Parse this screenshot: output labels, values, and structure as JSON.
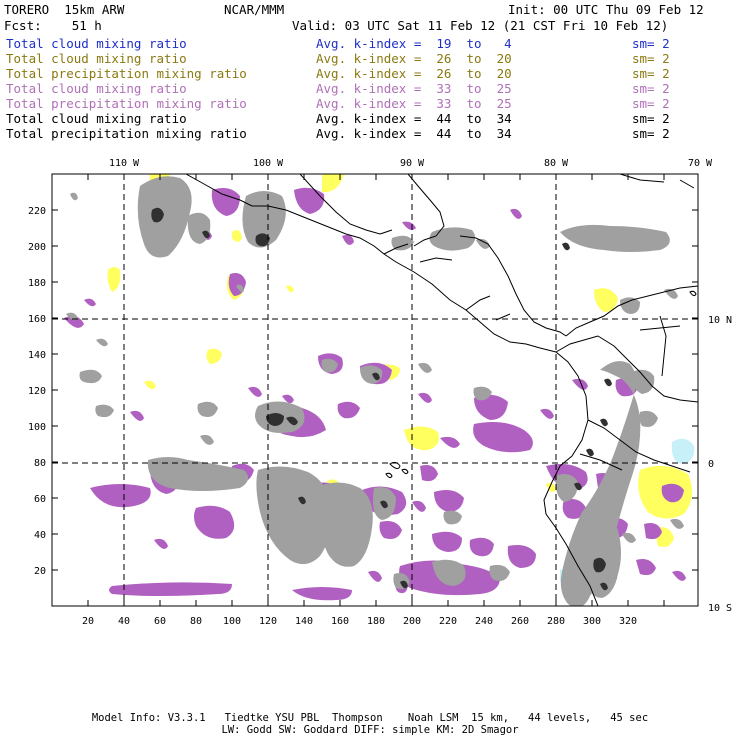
{
  "header": {
    "model": "TORERO  15km ARW",
    "org": "NCAR/MMM",
    "init": "Init: 00 UTC Thu 09 Feb 12",
    "fcst": "Fcst:    51 h",
    "valid": "Valid: 03 UTC Sat 11 Feb 12 (21 CST Fri 10 Feb 12)"
  },
  "legend": [
    {
      "field": "Total cloud mixing ratio",
      "index": "Avg. k-index =  19  to   4",
      "sm": "sm= 2",
      "color": "#1f2fc8"
    },
    {
      "field": "Total cloud mixing ratio",
      "index": "Avg. k-index =  26  to  20",
      "sm": "sm= 2",
      "color": "#8a7a10"
    },
    {
      "field": "Total precipitation mixing ratio",
      "index": "Avg. k-index =  26  to  20",
      "sm": "sm= 2",
      "color": "#8a7a10"
    },
    {
      "field": "Total cloud mixing ratio",
      "index": "Avg. k-index =  33  to  25",
      "sm": "sm= 2",
      "color": "#b070b8"
    },
    {
      "field": "Total precipitation mixing ratio",
      "index": "Avg. k-index =  33  to  25",
      "sm": "sm= 2",
      "color": "#b070b8"
    },
    {
      "field": "Total cloud mixing ratio",
      "index": "Avg. k-index =  44  to  34",
      "sm": "sm= 2",
      "color": "#000000"
    },
    {
      "field": "Total precipitation mixing ratio",
      "index": "Avg. k-index =  44  to  34",
      "sm": "sm= 2",
      "color": "#000000"
    }
  ],
  "map": {
    "lon_labels": [
      "110 W",
      "100 W",
      "90 W",
      "80 W",
      "70 W"
    ],
    "lat_labels": [
      "10 N",
      "0",
      "10 S"
    ],
    "x_ticks": [
      "20",
      "40",
      "60",
      "80",
      "100",
      "120",
      "140",
      "160",
      "180",
      "200",
      "220",
      "240",
      "260",
      "280",
      "300",
      "320"
    ],
    "y_ticks": [
      "20",
      "40",
      "60",
      "80",
      "100",
      "120",
      "140",
      "160",
      "180",
      "200",
      "220"
    ],
    "colors": {
      "gray": "#a0a0a0",
      "dark": "#303030",
      "purple": "#b060c0",
      "yellow": "#ffff60",
      "cyan": "#c8f0f8",
      "coast": "#000000"
    }
  },
  "footer": {
    "line1": "Model Info: V3.3.1   Tiedtke YSU PBL  Thompson    Noah LSM  15 km,   44 levels,   45 sec",
    "line2": "LW: Godd SW: Goddard DIFF: simple KM: 2D Smagor"
  }
}
